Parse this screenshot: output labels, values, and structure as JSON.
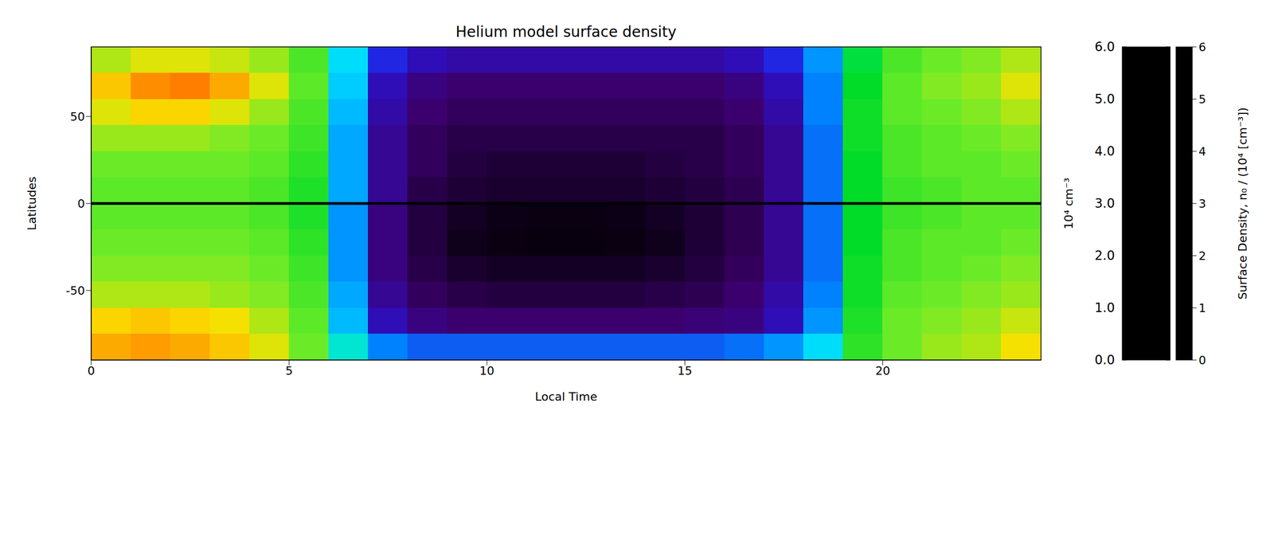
{
  "chart_data": {
    "type": "heatmap",
    "title": "Helium model surface density",
    "x_label": "Local Time",
    "y_label": "Latitudes",
    "xlim": [
      0,
      24
    ],
    "xticks": [
      0,
      5,
      10,
      15,
      20
    ],
    "ylim": [
      -90,
      90
    ],
    "yticks": [
      -50,
      0,
      50
    ],
    "x_bins": [
      0,
      1,
      2,
      3,
      4,
      5,
      6,
      7,
      8,
      9,
      10,
      11,
      12,
      13,
      14,
      15,
      16,
      17,
      18,
      19,
      20,
      21,
      22,
      23,
      24
    ],
    "y_bins": [
      90,
      75,
      60,
      45,
      30,
      15,
      0,
      -15,
      -30,
      -45,
      -60,
      -75,
      -90
    ],
    "hline": 0,
    "values": [
      [
        4.3,
        4.5,
        4.5,
        4.4,
        4.2,
        3.8,
        2.3,
        1.3,
        1.0,
        0.9,
        0.9,
        0.9,
        0.9,
        0.9,
        0.9,
        0.9,
        1.0,
        1.3,
        1.9,
        3.2,
        3.8,
        4.0,
        4.1,
        4.3
      ],
      [
        4.8,
        5.2,
        5.3,
        5.0,
        4.5,
        3.9,
        2.2,
        1.0,
        0.7,
        0.6,
        0.6,
        0.6,
        0.6,
        0.6,
        0.6,
        0.6,
        0.7,
        1.0,
        1.8,
        3.3,
        3.9,
        4.1,
        4.2,
        4.5
      ],
      [
        4.5,
        4.7,
        4.7,
        4.5,
        4.2,
        3.8,
        2.1,
        0.9,
        0.6,
        0.5,
        0.5,
        0.5,
        0.5,
        0.5,
        0.5,
        0.5,
        0.6,
        0.9,
        1.8,
        3.4,
        3.9,
        4.0,
        4.1,
        4.3
      ],
      [
        4.2,
        4.2,
        4.2,
        4.1,
        4.0,
        3.7,
        2.0,
        0.8,
        0.5,
        0.4,
        0.4,
        0.4,
        0.4,
        0.4,
        0.4,
        0.4,
        0.5,
        0.8,
        1.7,
        3.4,
        3.8,
        3.9,
        4.0,
        4.1
      ],
      [
        4.0,
        4.0,
        4.0,
        4.0,
        3.9,
        3.6,
        2.0,
        0.8,
        0.5,
        0.35,
        0.3,
        0.3,
        0.3,
        0.3,
        0.35,
        0.4,
        0.5,
        0.8,
        1.7,
        3.3,
        3.8,
        3.9,
        3.9,
        4.0
      ],
      [
        3.9,
        3.9,
        3.9,
        3.9,
        3.8,
        3.5,
        2.0,
        0.8,
        0.4,
        0.3,
        0.25,
        0.25,
        0.25,
        0.25,
        0.3,
        0.35,
        0.45,
        0.8,
        1.7,
        3.3,
        3.7,
        3.8,
        3.9,
        3.9
      ],
      [
        3.9,
        3.9,
        3.9,
        3.9,
        3.8,
        3.5,
        1.9,
        0.7,
        0.35,
        0.2,
        0.12,
        0.1,
        0.1,
        0.12,
        0.2,
        0.3,
        0.45,
        0.8,
        1.7,
        3.3,
        3.7,
        3.8,
        3.9,
        3.9
      ],
      [
        4.0,
        4.0,
        4.0,
        4.0,
        3.9,
        3.6,
        1.9,
        0.7,
        0.35,
        0.15,
        0.1,
        0.08,
        0.08,
        0.1,
        0.15,
        0.3,
        0.45,
        0.8,
        1.7,
        3.3,
        3.8,
        3.9,
        3.9,
        4.0
      ],
      [
        4.1,
        4.1,
        4.1,
        4.1,
        4.0,
        3.7,
        1.9,
        0.7,
        0.4,
        0.25,
        0.2,
        0.2,
        0.2,
        0.2,
        0.25,
        0.35,
        0.5,
        0.8,
        1.7,
        3.4,
        3.8,
        3.9,
        4.0,
        4.1
      ],
      [
        4.3,
        4.3,
        4.3,
        4.2,
        4.1,
        3.8,
        2.0,
        0.8,
        0.5,
        0.4,
        0.35,
        0.35,
        0.35,
        0.35,
        0.4,
        0.45,
        0.6,
        0.9,
        1.8,
        3.4,
        3.9,
        4.0,
        4.1,
        4.2
      ],
      [
        4.7,
        4.8,
        4.7,
        4.6,
        4.3,
        3.9,
        2.1,
        1.0,
        0.7,
        0.6,
        0.6,
        0.6,
        0.6,
        0.6,
        0.6,
        0.65,
        0.7,
        1.0,
        1.9,
        3.5,
        4.0,
        4.1,
        4.2,
        4.4
      ],
      [
        5.0,
        5.1,
        5.0,
        4.8,
        4.5,
        4.0,
        2.5,
        1.8,
        1.6,
        1.6,
        1.6,
        1.6,
        1.6,
        1.6,
        1.6,
        1.6,
        1.7,
        1.9,
        2.3,
        3.6,
        4.0,
        4.2,
        4.3,
        4.6
      ]
    ],
    "colorbars": [
      {
        "range": [
          0,
          6
        ],
        "ticks": [
          {
            "value": 0,
            "label": "0.0"
          },
          {
            "value": 1,
            "label": "1.0"
          },
          {
            "value": 2,
            "label": "2.0"
          },
          {
            "value": 3,
            "label": "3.0"
          },
          {
            "value": 4,
            "label": "4.0"
          },
          {
            "value": 5,
            "label": "5.0"
          },
          {
            "value": 6,
            "label": "6.0"
          }
        ],
        "label": "10⁴ cm⁻³"
      },
      {
        "range": [
          0,
          6
        ],
        "ticks": [
          0,
          1,
          2,
          3,
          4,
          5,
          6
        ],
        "label": "Surface Density, n₀ / (10⁴ [cm⁻³])"
      }
    ]
  }
}
